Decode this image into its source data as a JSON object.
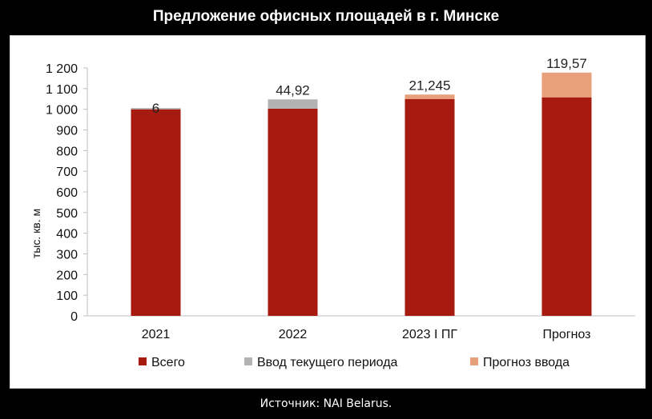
{
  "header": {
    "title": "Предложение офисных площадей в г. Минске"
  },
  "footer": {
    "source": "Источник: NAI Belarus."
  },
  "chart_data": {
    "type": "bar",
    "stacked": true,
    "categories": [
      "2021",
      "2022",
      "2023 I ПГ",
      "Прогноз"
    ],
    "series": [
      {
        "name": "Всего",
        "values": [
          1000,
          1003,
          1050,
          1058
        ],
        "color": "#a61a10"
      },
      {
        "name": "Ввод текущего периода",
        "values": [
          6,
          44.92,
          0,
          0
        ],
        "color": "#b3b3b3"
      },
      {
        "name": "Прогноз ввода",
        "values": [
          0,
          0,
          21.245,
          119.57
        ],
        "color": "#e8a07a"
      }
    ],
    "data_labels": [
      "6",
      "44,92",
      "21,245",
      "119,57"
    ],
    "ylabel": "тыс. кв. м",
    "ylim": [
      0,
      1200
    ],
    "yticks": [
      0,
      100,
      200,
      300,
      400,
      500,
      600,
      700,
      800,
      900,
      1000,
      1100,
      1200
    ],
    "ytick_labels": [
      "0",
      "100",
      "200",
      "300",
      "400",
      "500",
      "600",
      "700",
      "800",
      "900",
      "1 000",
      "1 100",
      "1 200"
    ],
    "legend_position": "bottom",
    "grid": false
  }
}
